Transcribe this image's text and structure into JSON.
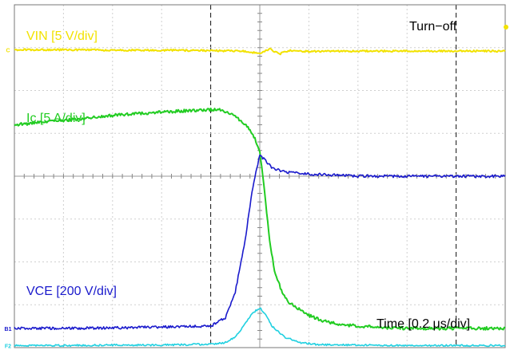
{
  "chart_data": {
    "type": "line",
    "title": "Turn−off",
    "xlabel": "Time [0.2 μs/div]",
    "ylabel": "",
    "grid": true,
    "divisions": {
      "x": 10,
      "y": 8
    },
    "xlim": [
      0,
      10
    ],
    "ylim": [
      0,
      8
    ],
    "x_unit": "div",
    "y_unit": "div",
    "series": [
      {
        "name": "VIN [5 V/div]",
        "color": "#f2e200",
        "marker_label": "C",
        "x": [
          0,
          1,
          2,
          3,
          4,
          4.6,
          4.8,
          5.0,
          5.2,
          5.4,
          5.6,
          6,
          7,
          8,
          9,
          10
        ],
        "y": [
          6.95,
          6.95,
          6.94,
          6.94,
          6.93,
          6.92,
          6.9,
          6.86,
          6.97,
          6.85,
          6.93,
          6.91,
          6.92,
          6.92,
          6.92,
          6.92
        ]
      },
      {
        "name": "Ic [5 A/div]",
        "color": "#22cc22",
        "x": [
          0,
          1,
          2,
          3,
          4.0,
          4.2,
          4.5,
          4.7,
          4.85,
          5.0,
          5.1,
          5.2,
          5.3,
          5.45,
          5.6,
          5.8,
          6.0,
          6.3,
          6.6,
          7,
          7.5,
          8,
          9,
          10
        ],
        "y": [
          5.2,
          5.3,
          5.42,
          5.5,
          5.55,
          5.56,
          5.4,
          5.2,
          5.0,
          4.6,
          3.6,
          2.5,
          1.8,
          1.3,
          1.05,
          0.9,
          0.75,
          0.62,
          0.55,
          0.5,
          0.47,
          0.45,
          0.45,
          0.45
        ]
      },
      {
        "name": "VCE [200 V/div]",
        "color": "#1a1acc",
        "marker_label": "B1",
        "x": [
          0,
          1,
          2,
          3,
          4.0,
          4.3,
          4.5,
          4.7,
          4.85,
          5.0,
          5.1,
          5.25,
          5.5,
          6,
          7,
          8,
          9,
          10
        ],
        "y": [
          0.45,
          0.45,
          0.46,
          0.48,
          0.5,
          0.7,
          1.3,
          2.5,
          3.7,
          4.5,
          4.38,
          4.2,
          4.1,
          4.05,
          4.0,
          4.0,
          4.0,
          4.0
        ]
      },
      {
        "name": "",
        "color": "#20d0e0",
        "marker_label": "F2",
        "x": [
          0,
          1,
          2,
          3,
          4.0,
          4.3,
          4.5,
          4.7,
          4.85,
          5.0,
          5.1,
          5.25,
          5.5,
          5.8,
          6.2,
          7,
          8,
          9,
          10
        ],
        "y": [
          0.05,
          0.05,
          0.06,
          0.06,
          0.08,
          0.12,
          0.25,
          0.55,
          0.8,
          0.93,
          0.8,
          0.5,
          0.25,
          0.12,
          0.07,
          0.06,
          0.05,
          0.05,
          0.05
        ]
      }
    ]
  }
}
